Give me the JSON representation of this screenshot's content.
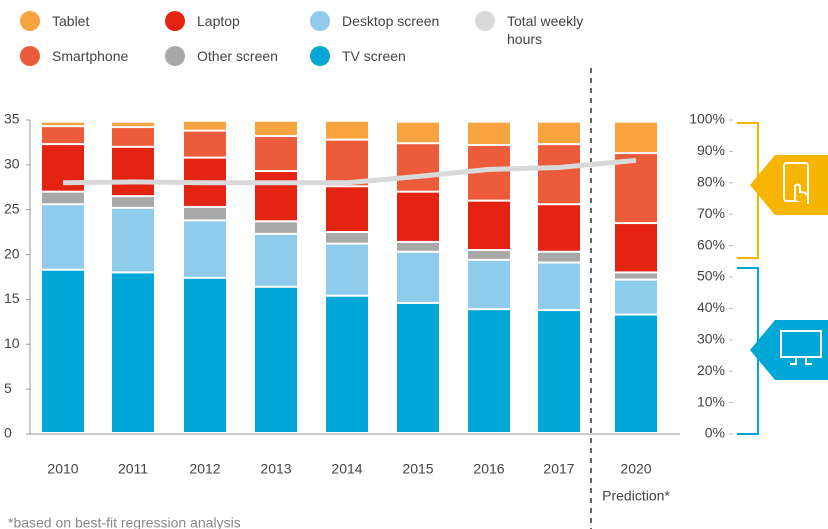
{
  "chart_data": {
    "type": "bar",
    "stacked": true,
    "categories": [
      "2010",
      "2011",
      "2012",
      "2013",
      "2014",
      "2015",
      "2016",
      "2017",
      "2020"
    ],
    "series": [
      {
        "name": "TV screen",
        "color": "#00a6d6",
        "values": [
          18.2,
          17.9,
          17.3,
          16.3,
          15.3,
          14.5,
          13.8,
          13.7,
          13.2
        ]
      },
      {
        "name": "Desktop screen",
        "color": "#8fcbea",
        "values": [
          7.3,
          7.2,
          6.4,
          5.9,
          5.8,
          5.7,
          5.5,
          5.3,
          3.9
        ]
      },
      {
        "name": "Other screen",
        "color": "#a8a8a8",
        "values": [
          1.4,
          1.3,
          1.5,
          1.4,
          1.3,
          1.1,
          1.1,
          1.2,
          0.8
        ]
      },
      {
        "name": "Laptop",
        "color": "#e42313",
        "values": [
          5.3,
          5.5,
          5.5,
          5.6,
          5.1,
          5.6,
          5.5,
          5.3,
          5.5
        ]
      },
      {
        "name": "Smartphone",
        "color": "#ec5b3a",
        "values": [
          2.0,
          2.2,
          3.0,
          3.9,
          5.2,
          5.4,
          6.2,
          6.7,
          7.8
        ]
      },
      {
        "name": "Tablet",
        "color": "#f7a440",
        "values": [
          0.5,
          0.6,
          1.1,
          1.7,
          2.1,
          2.4,
          2.6,
          2.5,
          3.5
        ]
      },
      {
        "name": "Total weekly hours",
        "color": "#d9d9d9",
        "type": "line",
        "values": [
          28.0,
          28.1,
          28.0,
          28.0,
          28.0,
          28.7,
          29.5,
          29.7,
          30.5
        ]
      }
    ],
    "ylim": [
      0,
      35
    ],
    "yticks": [
      0,
      5,
      10,
      15,
      20,
      25,
      30,
      35
    ],
    "y2lim": [
      0,
      100
    ],
    "y2ticks": [
      {
        "value": 0,
        "label": "0%"
      },
      {
        "value": 10,
        "label": "10%"
      },
      {
        "value": 20,
        "label": "20%"
      },
      {
        "value": 30,
        "label": "30%"
      },
      {
        "value": 40,
        "label": "40%"
      },
      {
        "value": 50,
        "label": "50%"
      },
      {
        "value": 60,
        "label": "60%"
      },
      {
        "value": 70,
        "label": "70%"
      },
      {
        "value": 80,
        "label": "80%"
      },
      {
        "value": 90,
        "label": "90%"
      },
      {
        "value": 100,
        "label": "100%"
      }
    ],
    "annotation": "Prediction*",
    "footnote": "*based on best-fit regression analysis"
  }
}
